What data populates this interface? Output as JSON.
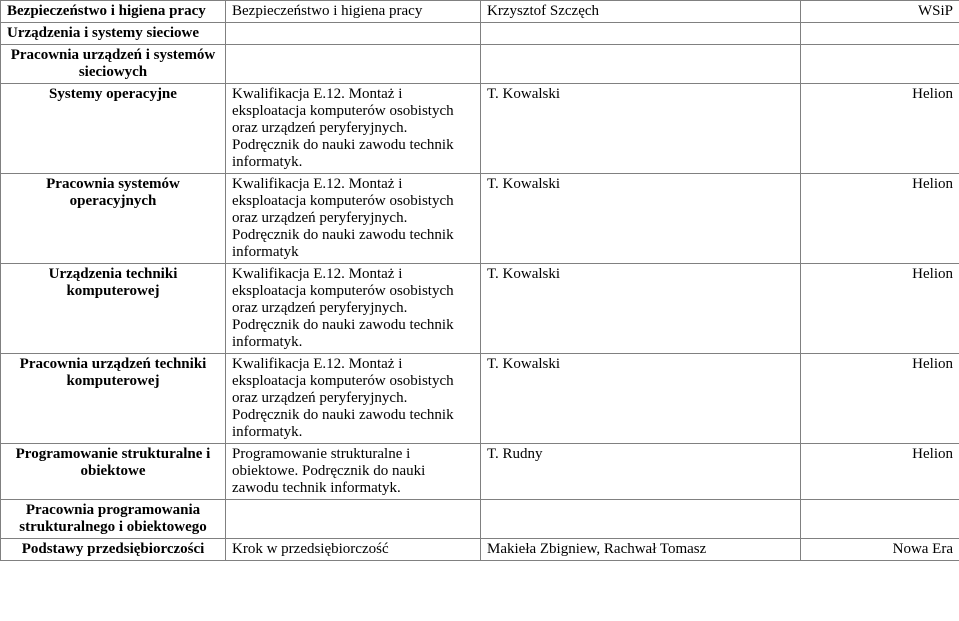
{
  "rows": [
    {
      "c1": "Bezpieczeństwo i higiena pracy",
      "c1_bold": true,
      "c1_center": false,
      "c2": "Bezpieczeństwo i higiena pracy",
      "c3": "Krzysztof Szczęch",
      "c4": "WSiP",
      "c4_right": true
    },
    {
      "c1": "Urządzenia i systemy sieciowe",
      "c1_bold": true,
      "c1_center": false,
      "c2": "",
      "c3": "",
      "c4": ""
    },
    {
      "c1": "Pracownia urządzeń i systemów sieciowych",
      "c1_bold": true,
      "c1_center": true,
      "c2": "",
      "c3": "",
      "c4": ""
    },
    {
      "c1": "Systemy operacyjne",
      "c1_bold": true,
      "c1_center": true,
      "c2": "Kwalifikacja E.12. Montaż i eksploatacja komputerów osobistych oraz urządzeń peryferyjnych. Podręcznik do nauki zawodu technik informatyk.",
      "c3": "T. Kowalski",
      "c4": "Helion",
      "c4_right": true
    },
    {
      "c1": "Pracownia systemów operacyjnych",
      "c1_bold": true,
      "c1_center": true,
      "c2": "Kwalifikacja E.12. Montaż i eksploatacja komputerów osobistych oraz urządzeń peryferyjnych. Podręcznik do nauki zawodu technik informatyk",
      "c3": "T. Kowalski",
      "c4": "Helion",
      "c4_right": true
    },
    {
      "c1": "Urządzenia techniki komputerowej",
      "c1_bold": true,
      "c1_center": true,
      "c2": "Kwalifikacja E.12. Montaż i eksploatacja komputerów osobistych oraz urządzeń peryferyjnych. Podręcznik do nauki zawodu technik informatyk.",
      "c3": "T. Kowalski",
      "c4": "Helion",
      "c4_right": true
    },
    {
      "c1": "Pracownia urządzeń techniki komputerowej",
      "c1_bold": true,
      "c1_center": true,
      "c2": "Kwalifikacja E.12. Montaż i eksploatacja komputerów osobistych oraz urządzeń peryferyjnych. Podręcznik do nauki zawodu technik informatyk.",
      "c3": "T. Kowalski",
      "c4": "Helion",
      "c4_right": true
    },
    {
      "c1": "Programowanie strukturalne i obiektowe",
      "c1_bold": true,
      "c1_center": true,
      "c2": "Programowanie strukturalne i obiektowe. Podręcznik do nauki zawodu technik informatyk.",
      "c3": "T. Rudny",
      "c4": "Helion",
      "c4_right": true
    },
    {
      "c1": "Pracownia programowania strukturalnego i obiektowego",
      "c1_bold": true,
      "c1_center": true,
      "c2": "",
      "c3": "",
      "c4": ""
    },
    {
      "c1": "Podstawy przedsiębiorczości",
      "c1_bold": true,
      "c1_center": true,
      "c2": "Krok w przedsiębiorczość",
      "c3": "Makieła Zbigniew, Rachwał Tomasz",
      "c4": "Nowa Era",
      "c4_right": true
    }
  ]
}
